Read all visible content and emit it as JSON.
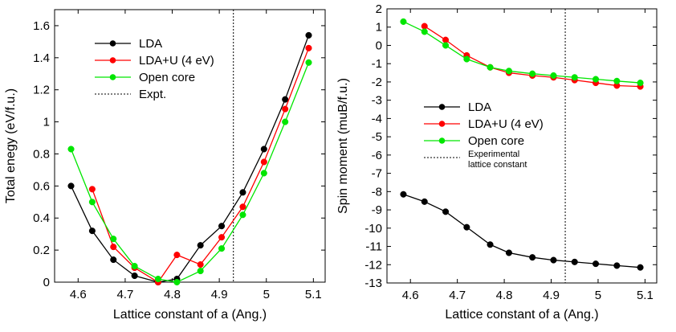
{
  "chart_data": [
    {
      "type": "line",
      "xlabel": "Lattice constant of a (Ang.)",
      "ylabel": "Total enegy (eV/f.u.)",
      "xlim": [
        4.55,
        5.125
      ],
      "ylim": [
        0,
        1.7
      ],
      "xticks": [
        4.6,
        4.7,
        4.8,
        4.9,
        5,
        5.1
      ],
      "xtick_labels": [
        "4.6",
        "4.7",
        "4.8",
        "4.9",
        "5",
        "5.1"
      ],
      "yticks": [
        0,
        0.2,
        0.4,
        0.6,
        0.8,
        1,
        1.2,
        1.4,
        1.6
      ],
      "ytick_labels": [
        "0",
        "0.2",
        "0.4",
        "0.6",
        "0.8",
        "1",
        "1.2",
        "1.4",
        "1.6"
      ],
      "vline": {
        "x": 4.93,
        "style": "dashed",
        "color": "#000000"
      },
      "legend": {
        "position": "top-left",
        "entries": [
          {
            "label": "LDA",
            "color": "#000000",
            "marker": true
          },
          {
            "label": "LDA+U (4 eV)",
            "color": "#ff0000",
            "marker": true
          },
          {
            "label": "Open core",
            "color": "#00e600",
            "marker": true
          },
          {
            "label": "Expt.",
            "color": "#000000",
            "marker": false,
            "dashed": true
          }
        ]
      },
      "series": [
        {
          "name": "LDA",
          "color": "#000000",
          "x": [
            4.585,
            4.63,
            4.675,
            4.72,
            4.77,
            4.81,
            4.86,
            4.905,
            4.95,
            4.995,
            5.04,
            5.09
          ],
          "y": [
            0.6,
            0.32,
            0.14,
            0.04,
            0.0,
            0.02,
            0.23,
            0.35,
            0.56,
            0.83,
            1.14,
            1.54
          ]
        },
        {
          "name": "LDA+U (4 eV)",
          "color": "#ff0000",
          "x": [
            4.63,
            4.675,
            4.72,
            4.77,
            4.81,
            4.86,
            4.905,
            4.95,
            4.995,
            5.04,
            5.09
          ],
          "y": [
            0.58,
            0.22,
            0.09,
            0.0,
            0.17,
            0.11,
            0.28,
            0.47,
            0.75,
            1.08,
            1.46
          ]
        },
        {
          "name": "Open core",
          "color": "#00e600",
          "x": [
            4.585,
            4.63,
            4.675,
            4.72,
            4.77,
            4.81,
            4.86,
            4.905,
            4.95,
            4.995,
            5.04,
            5.09
          ],
          "y": [
            0.83,
            0.5,
            0.27,
            0.1,
            0.02,
            0.0,
            0.07,
            0.21,
            0.42,
            0.68,
            1.0,
            1.37
          ]
        }
      ]
    },
    {
      "type": "line",
      "xlabel": "Lattice constant of a (Ang.)",
      "ylabel": "Spin moment (muB/f.u.)",
      "xlim": [
        4.55,
        5.125
      ],
      "ylim": [
        -13,
        2
      ],
      "xticks": [
        4.6,
        4.7,
        4.8,
        4.9,
        5,
        5.1
      ],
      "xtick_labels": [
        "4.6",
        "4.7",
        "4.8",
        "4.9",
        "5",
        "5.1"
      ],
      "yticks": [
        -13,
        -12,
        -11,
        -10,
        -9,
        -8,
        -7,
        -6,
        -5,
        -4,
        -3,
        -2,
        -1,
        0,
        1,
        2
      ],
      "ytick_labels": [
        "-13",
        "-12",
        "-11",
        "-10",
        "-9",
        "-8",
        "-7",
        "-6",
        "-5",
        "-4",
        "-3",
        "-2",
        "-1",
        "0",
        "1",
        "2"
      ],
      "vline": {
        "x": 4.93,
        "style": "dashed",
        "color": "#000000"
      },
      "legend": {
        "position": "center-left",
        "entries": [
          {
            "label": "LDA",
            "color": "#000000",
            "marker": true
          },
          {
            "label": "LDA+U (4 eV)",
            "color": "#ff0000",
            "marker": true
          },
          {
            "label": "Open core",
            "color": "#00e600",
            "marker": true
          },
          {
            "label": "Experimental",
            "label2": "lattice constant",
            "color": "#000000",
            "marker": false,
            "dashed": true
          }
        ]
      },
      "series": [
        {
          "name": "LDA",
          "color": "#000000",
          "x": [
            4.585,
            4.63,
            4.675,
            4.72,
            4.77,
            4.81,
            4.86,
            4.905,
            4.95,
            4.995,
            5.04,
            5.09
          ],
          "y": [
            -8.15,
            -8.55,
            -9.1,
            -9.95,
            -10.9,
            -11.35,
            -11.6,
            -11.75,
            -11.85,
            -11.95,
            -12.05,
            -12.15
          ]
        },
        {
          "name": "LDA+U (4 eV)",
          "color": "#ff0000",
          "x": [
            4.63,
            4.675,
            4.72,
            4.77,
            4.81,
            4.86,
            4.905,
            4.95,
            4.995,
            5.04,
            5.09
          ],
          "y": [
            1.05,
            0.3,
            -0.55,
            -1.2,
            -1.5,
            -1.65,
            -1.75,
            -1.9,
            -2.05,
            -2.2,
            -2.25
          ]
        },
        {
          "name": "Open core",
          "color": "#00e600",
          "x": [
            4.585,
            4.63,
            4.675,
            4.72,
            4.77,
            4.81,
            4.86,
            4.905,
            4.95,
            4.995,
            5.04,
            5.09
          ],
          "y": [
            1.3,
            0.75,
            0.0,
            -0.75,
            -1.2,
            -1.4,
            -1.55,
            -1.65,
            -1.75,
            -1.85,
            -1.95,
            -2.05
          ]
        }
      ]
    }
  ]
}
